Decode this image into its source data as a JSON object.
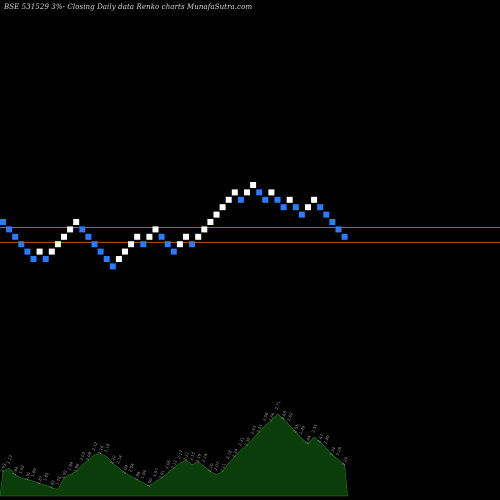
{
  "chart_data": {
    "type": "renko",
    "title": "BSE 531529 3%-  Closing Daily data  Renko  charts MunafaSutra.com",
    "colors": {
      "background": "#000000",
      "up_brick": "#ffffff",
      "down_brick": "#2b7bff",
      "reference_line": "#b05a1a",
      "volume_area": "#0b3d0b",
      "volume_outline": "#1f7a1f",
      "volume_label": "#9a9a9a"
    },
    "bricks": [
      {
        "level": 0,
        "dir": "down"
      },
      {
        "level": -1,
        "dir": "down"
      },
      {
        "level": -2,
        "dir": "down"
      },
      {
        "level": -3,
        "dir": "down"
      },
      {
        "level": -4,
        "dir": "down"
      },
      {
        "level": -5,
        "dir": "down"
      },
      {
        "level": -4,
        "dir": "up"
      },
      {
        "level": -5,
        "dir": "down"
      },
      {
        "level": -4,
        "dir": "up"
      },
      {
        "level": -3,
        "dir": "up"
      },
      {
        "level": -2,
        "dir": "up"
      },
      {
        "level": -1,
        "dir": "up"
      },
      {
        "level": 0,
        "dir": "up"
      },
      {
        "level": -1,
        "dir": "down"
      },
      {
        "level": -2,
        "dir": "down"
      },
      {
        "level": -3,
        "dir": "down"
      },
      {
        "level": -4,
        "dir": "down"
      },
      {
        "level": -5,
        "dir": "down"
      },
      {
        "level": -6,
        "dir": "down"
      },
      {
        "level": -5,
        "dir": "up"
      },
      {
        "level": -4,
        "dir": "up"
      },
      {
        "level": -3,
        "dir": "up"
      },
      {
        "level": -2,
        "dir": "up"
      },
      {
        "level": -3,
        "dir": "down"
      },
      {
        "level": -2,
        "dir": "up"
      },
      {
        "level": -1,
        "dir": "up"
      },
      {
        "level": -2,
        "dir": "down"
      },
      {
        "level": -3,
        "dir": "down"
      },
      {
        "level": -4,
        "dir": "down"
      },
      {
        "level": -3,
        "dir": "up"
      },
      {
        "level": -2,
        "dir": "up"
      },
      {
        "level": -3,
        "dir": "down"
      },
      {
        "level": -2,
        "dir": "up"
      },
      {
        "level": -1,
        "dir": "up"
      },
      {
        "level": 0,
        "dir": "up"
      },
      {
        "level": 1,
        "dir": "up"
      },
      {
        "level": 2,
        "dir": "up"
      },
      {
        "level": 3,
        "dir": "up"
      },
      {
        "level": 4,
        "dir": "up"
      },
      {
        "level": 3,
        "dir": "down"
      },
      {
        "level": 4,
        "dir": "up"
      },
      {
        "level": 5,
        "dir": "up"
      },
      {
        "level": 4,
        "dir": "down"
      },
      {
        "level": 3,
        "dir": "down"
      },
      {
        "level": 4,
        "dir": "up"
      },
      {
        "level": 3,
        "dir": "down"
      },
      {
        "level": 2,
        "dir": "down"
      },
      {
        "level": 3,
        "dir": "up"
      },
      {
        "level": 2,
        "dir": "down"
      },
      {
        "level": 1,
        "dir": "down"
      },
      {
        "level": 2,
        "dir": "up"
      },
      {
        "level": 3,
        "dir": "up"
      },
      {
        "level": 2,
        "dir": "down"
      },
      {
        "level": 1,
        "dir": "down"
      },
      {
        "level": 0,
        "dir": "down"
      },
      {
        "level": -1,
        "dir": "down"
      },
      {
        "level": -2,
        "dir": "down"
      }
    ],
    "reference_lines": [
      {
        "level": -0.75
      },
      {
        "level": -2.75
      }
    ],
    "volume_labels": [
      "2.03",
      "2.13",
      "1.94",
      "1.92",
      "1.91",
      "1.89",
      "1.87",
      "1.85",
      "1.82",
      "1.78",
      "1.92",
      "1.94",
      "1.96",
      "2.03",
      "2.08",
      "2.12",
      "2.16",
      "2.18",
      "2.22",
      "2.14",
      "2.09",
      "2.04",
      "1.98",
      "1.94",
      "1.90",
      "1.97",
      "2.01",
      "2.06",
      "2.12",
      "2.17",
      "2.21",
      "2.15",
      "2.19",
      "2.14",
      "2.10",
      "2.07",
      "2.11",
      "2.18",
      "2.24",
      "2.31",
      "2.36",
      "2.43",
      "2.51",
      "2.58",
      "2.66",
      "2.71",
      "2.68",
      "2.62",
      "2.55",
      "2.49",
      "2.44",
      "2.51",
      "2.47",
      "2.40",
      "2.34",
      "2.29",
      "2.24"
    ],
    "volume": [
      0.3,
      0.34,
      0.26,
      0.22,
      0.2,
      0.18,
      0.15,
      0.13,
      0.1,
      0.08,
      0.22,
      0.26,
      0.3,
      0.38,
      0.44,
      0.5,
      0.52,
      0.48,
      0.4,
      0.34,
      0.28,
      0.24,
      0.2,
      0.16,
      0.12,
      0.18,
      0.22,
      0.28,
      0.34,
      0.4,
      0.44,
      0.38,
      0.42,
      0.36,
      0.3,
      0.26,
      0.3,
      0.4,
      0.48,
      0.56,
      0.62,
      0.7,
      0.78,
      0.86,
      0.92,
      1.0,
      0.94,
      0.86,
      0.78,
      0.7,
      0.64,
      0.72,
      0.66,
      0.58,
      0.5,
      0.44,
      0.38
    ]
  }
}
